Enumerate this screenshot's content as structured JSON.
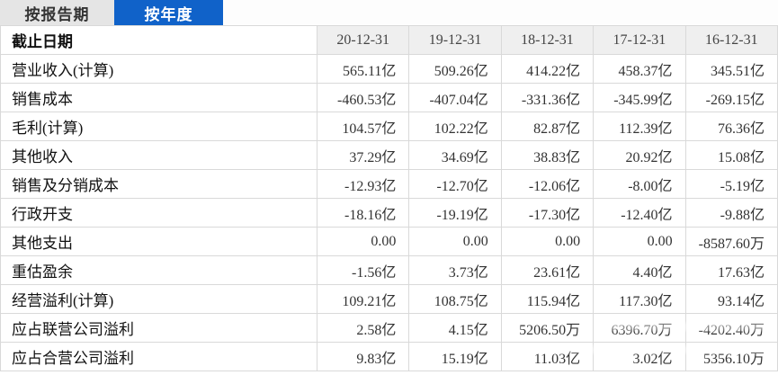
{
  "tabs": [
    {
      "label": "按报告期",
      "active": false
    },
    {
      "label": "按年度",
      "active": true
    }
  ],
  "colors": {
    "tab_active_bg": "#1062c9",
    "tab_active_text": "#ffffff",
    "tab_inactive_bg": "#e5e5e5",
    "header_bg": "#efefef",
    "border": "#d9d9d9"
  },
  "table": {
    "corner_label": "截止日期",
    "columns": [
      "20-12-31",
      "19-12-31",
      "18-12-31",
      "17-12-31",
      "16-12-31"
    ],
    "rows": [
      {
        "label": "营业收入(计算)",
        "values": [
          "565.11亿",
          "509.26亿",
          "414.22亿",
          "458.37亿",
          "345.51亿"
        ]
      },
      {
        "label": "销售成本",
        "values": [
          "-460.53亿",
          "-407.04亿",
          "-331.36亿",
          "-345.99亿",
          "-269.15亿"
        ]
      },
      {
        "label": "毛利(计算)",
        "values": [
          "104.57亿",
          "102.22亿",
          "82.87亿",
          "112.39亿",
          "76.36亿"
        ]
      },
      {
        "label": "其他收入",
        "values": [
          "37.29亿",
          "34.69亿",
          "38.83亿",
          "20.92亿",
          "15.08亿"
        ]
      },
      {
        "label": "销售及分销成本",
        "values": [
          "-12.93亿",
          "-12.70亿",
          "-12.06亿",
          "-8.00亿",
          "-5.19亿"
        ]
      },
      {
        "label": "行政开支",
        "values": [
          "-18.16亿",
          "-19.19亿",
          "-17.30亿",
          "-12.40亿",
          "-9.88亿"
        ]
      },
      {
        "label": "其他支出",
        "values": [
          "0.00",
          "0.00",
          "0.00",
          "0.00",
          "-8587.60万"
        ]
      },
      {
        "label": "重估盈余",
        "values": [
          "-1.56亿",
          "3.73亿",
          "23.61亿",
          "4.40亿",
          "17.63亿"
        ]
      },
      {
        "label": "经营溢利(计算)",
        "values": [
          "109.21亿",
          "108.75亿",
          "115.94亿",
          "117.30亿",
          "93.14亿"
        ]
      },
      {
        "label": "应占联营公司溢利",
        "values": [
          "2.58亿",
          "4.15亿",
          "5206.50万",
          "6396.70万",
          "-4202.40万"
        ]
      },
      {
        "label": "应占合营公司溢利",
        "values": [
          "9.83亿",
          "15.19亿",
          "11.03亿",
          "3.02亿",
          "5356.10万"
        ]
      }
    ]
  }
}
